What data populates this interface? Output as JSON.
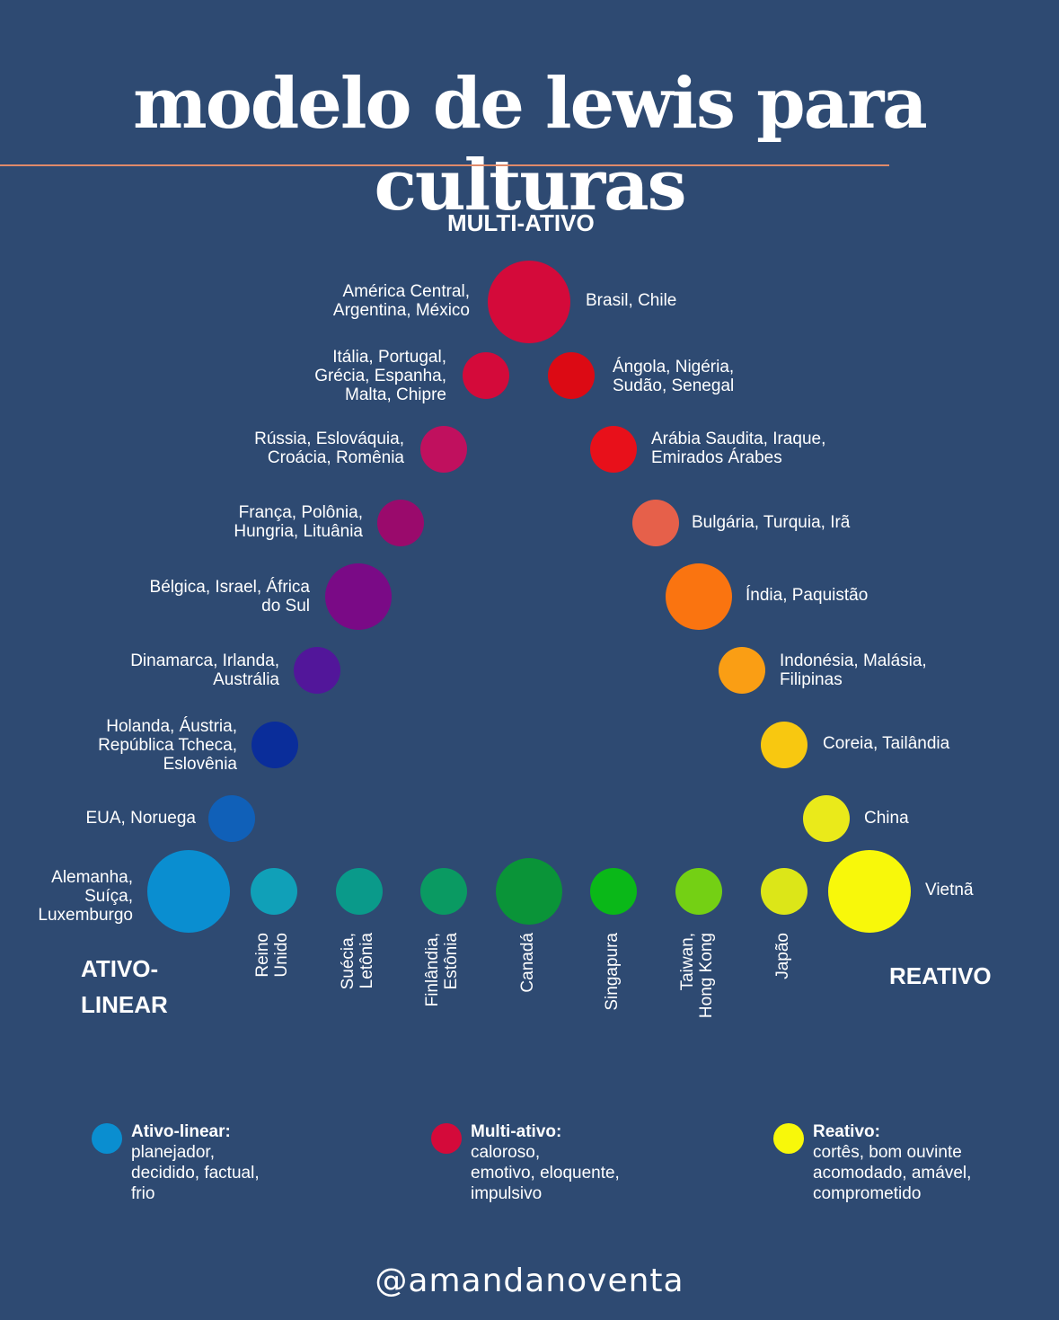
{
  "title": "modelo de lewis para culturas",
  "poles": {
    "top": "MULTI-ATIVO",
    "left": "ATIVO-\nLINEAR",
    "right": "REATIVO"
  },
  "countries": {
    "left_arm": [
      {
        "label": "América Central,\nArgentina, México",
        "color": "#d40a3a"
      },
      {
        "label": "Itália, Portugal,\nGrécia, Espanha,\nMalta, Chipre",
        "color": "#d40a3a"
      },
      {
        "label": "Rússia, Eslováquia,\nCroácia, Romênia",
        "color": "#c0105e"
      },
      {
        "label": "França, Polônia,\nHungria, Lituânia",
        "color": "#9a0a6c"
      },
      {
        "label": "Bélgica, Israel, África\ndo Sul",
        "color": "#7a0a86"
      },
      {
        "label": "Dinamarca, Irlanda,\nAustrália",
        "color": "#52169a"
      },
      {
        "label": "Holanda, Áustria,\nRepública Tcheca,\nEslovênia",
        "color": "#0a2d9a"
      },
      {
        "label": "EUA, Noruega",
        "color": "#1060b8"
      },
      {
        "label": "Alemanha,\nSuíça,\nLuxemburgo",
        "color": "#0a8ed0"
      }
    ],
    "right_arm": [
      {
        "label": "Brasil, Chile",
        "color": "#d40a3a"
      },
      {
        "label": "Ángola, Nigéria,\nSudão, Senegal",
        "color": "#dc0a14"
      },
      {
        "label": "Arábia Saudita, Iraque,\nEmirados Árabes",
        "color": "#e8101a"
      },
      {
        "label": "Bulgária, Turquia, Irã",
        "color": "#e6604a"
      },
      {
        "label": "Índia, Paquistão",
        "color": "#fa7410"
      },
      {
        "label": "Indonésia, Malásia,\nFilipinas",
        "color": "#fa9e14"
      },
      {
        "label": "Coreia, Tailândia",
        "color": "#f8c810"
      },
      {
        "label": "China",
        "color": "#eaea1a"
      },
      {
        "label": "Vietnã",
        "color": "#f8f80a"
      }
    ],
    "bottom_row": [
      {
        "label": "Reino\nUnido",
        "color": "#10a0b8"
      },
      {
        "label": "Suécia,\nLetônia",
        "color": "#0a9a8a"
      },
      {
        "label": "Finlândia,\nEstônia",
        "color": "#0a9a62"
      },
      {
        "label": "Canadá",
        "color": "#0a9438"
      },
      {
        "label": "Singapura",
        "color": "#0ab818"
      },
      {
        "label": "Taiwan,\nHong Kong",
        "color": "#74d014"
      },
      {
        "label": "Japão",
        "color": "#dce618"
      }
    ]
  },
  "legend": [
    {
      "heading": "Ativo-linear:",
      "body": "planejador,\ndecidido, factual,\nfrio",
      "color": "#0a8ed0"
    },
    {
      "heading": "Multi-ativo:",
      "body": "caloroso,\nemotivo, eloquente,\nimpulsivo",
      "color": "#d40a3a"
    },
    {
      "heading": "Reativo:",
      "body": "cortês, bom ouvinte\nacomodado, amável,\ncomprometido",
      "color": "#f8f80a"
    }
  ],
  "handle": "@amandanoventa"
}
